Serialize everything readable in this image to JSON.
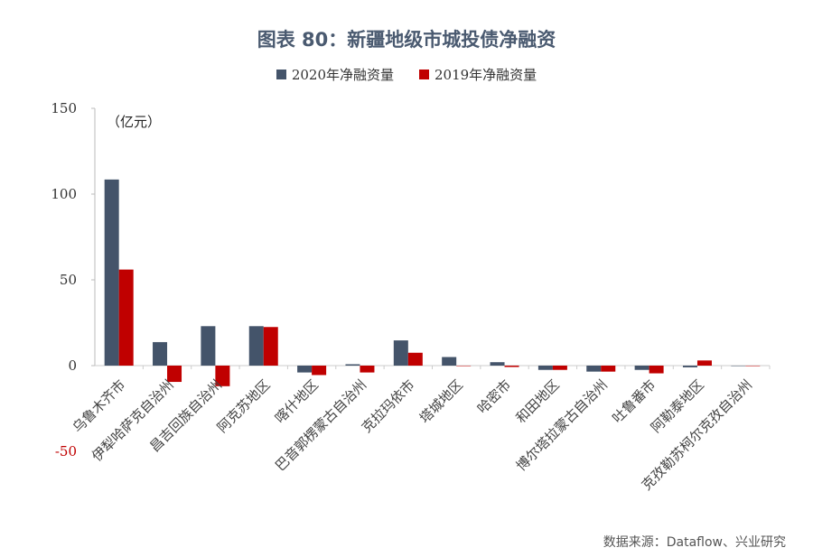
{
  "chart_data": {
    "type": "bar",
    "title": "图表 80：新疆地级市城投债净融资",
    "unit_label": "（亿元）",
    "source": "数据来源：Dataflow、兴业研究",
    "categories": [
      "乌鲁木齐市",
      "伊犁哈萨克自治州",
      "昌吉回族自治州",
      "阿克苏地区",
      "喀什地区",
      "巴音郭楞蒙古自治州",
      "克拉玛依市",
      "塔城地区",
      "哈密市",
      "和田地区",
      "博尔塔拉蒙古自治州",
      "吐鲁番市",
      "阿勒泰地区",
      "克孜勒苏柯尔克孜自治州"
    ],
    "series": [
      {
        "name": "2020年净融资量",
        "color": "#44546a",
        "values": [
          108.5,
          13.7,
          23,
          23,
          -4,
          0.8,
          14.7,
          5,
          2,
          -2.5,
          -3.5,
          -2.5,
          -1,
          0
        ]
      },
      {
        "name": "2019年净融资量",
        "color": "#c00000",
        "values": [
          56,
          -9.5,
          -12,
          22.5,
          -5.5,
          -4,
          7.5,
          0,
          -0.8,
          -2.5,
          -3.5,
          -4.5,
          3,
          0
        ]
      }
    ],
    "ylim": [
      -50,
      150
    ],
    "yticks": [
      150,
      100,
      50,
      0,
      -50
    ],
    "grid": false,
    "legend": "top"
  }
}
